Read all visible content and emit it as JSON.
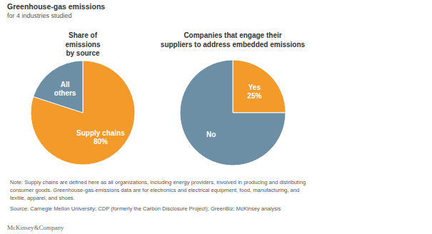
{
  "title": "Greenhouse-gas emissions",
  "subtitle": "for 4 industries studied",
  "chart_data": [
    {
      "type": "pie",
      "title": "Share of\nemissions\nby source",
      "categories": [
        "Supply chains",
        "All others"
      ],
      "values": [
        80,
        20
      ],
      "value_labels": [
        "80%",
        null
      ],
      "colors": [
        "#F39A2B",
        "#6D8FA6"
      ],
      "data_labels": true
    },
    {
      "type": "pie",
      "title": "Companies that engage their\nsuppliers to address embedded emissions",
      "categories": [
        "Yes",
        "No"
      ],
      "values": [
        25,
        75
      ],
      "value_labels": [
        "25%",
        null
      ],
      "colors": [
        "#F39A2B",
        "#6D8FA6"
      ],
      "data_labels": true
    }
  ],
  "note": "Note: Supply chains are defined here as all organizations, including energy providers, involved in producing and distributing\nconsumer goods. Greenhouse-gas-emissions data are for electronics and electrical equipment, food, manufacturing, and\ntextile, apparel, and shoes.",
  "source": "Source: Carnegie Mellon University; CDP (formerly the Carbon Disclosure Project); GreenBiz; McKinsey analysis",
  "brand": "McKinsey&Company"
}
